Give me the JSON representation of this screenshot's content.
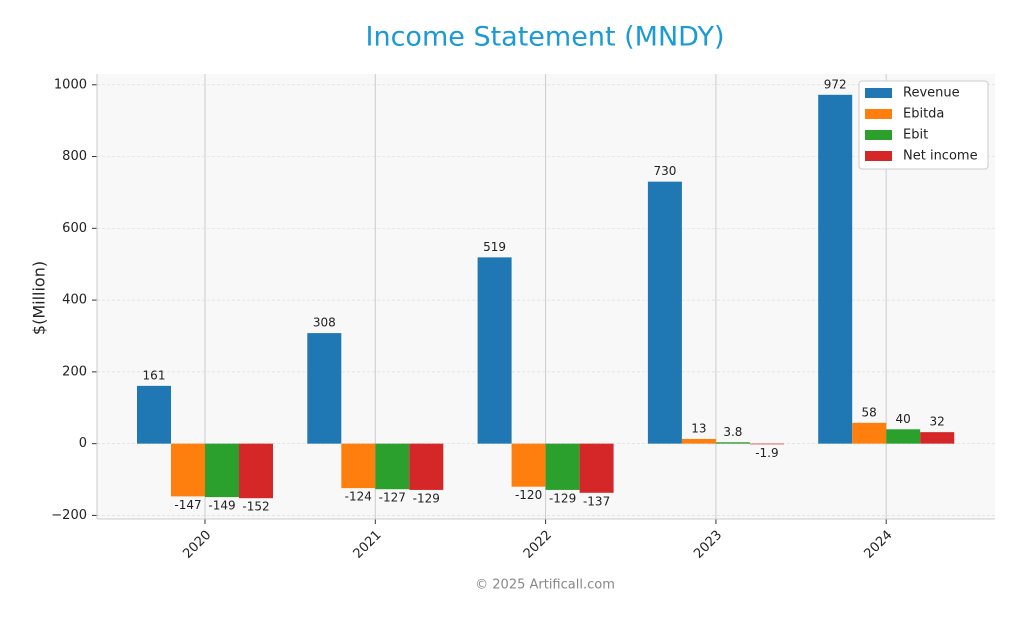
{
  "chart_data": {
    "type": "bar",
    "title": "Income Statement (MNDY)",
    "ylabel": "$(Million)",
    "categories": [
      "2020",
      "2021",
      "2022",
      "2023",
      "2024"
    ],
    "series": [
      {
        "name": "Revenue",
        "color": "#1f77b4",
        "values": [
          161,
          308,
          519,
          730,
          972
        ]
      },
      {
        "name": "Ebitda",
        "color": "#ff7f0e",
        "values": [
          -147,
          -124,
          -120,
          13,
          58
        ]
      },
      {
        "name": "Ebit",
        "color": "#2ca02c",
        "values": [
          -149,
          -127,
          -129,
          3.8,
          40
        ]
      },
      {
        "name": "Net income",
        "color": "#d62728",
        "values": [
          -152,
          -129,
          -137,
          -1.9,
          32
        ]
      }
    ],
    "ylim": [
      -210,
      1030
    ],
    "yticks": [
      {
        "value": -200,
        "label": "−200"
      },
      0,
      200,
      400,
      600,
      800,
      1000
    ],
    "grid": true,
    "legend": "upper right",
    "footer": "© 2025 Artificall.com"
  }
}
